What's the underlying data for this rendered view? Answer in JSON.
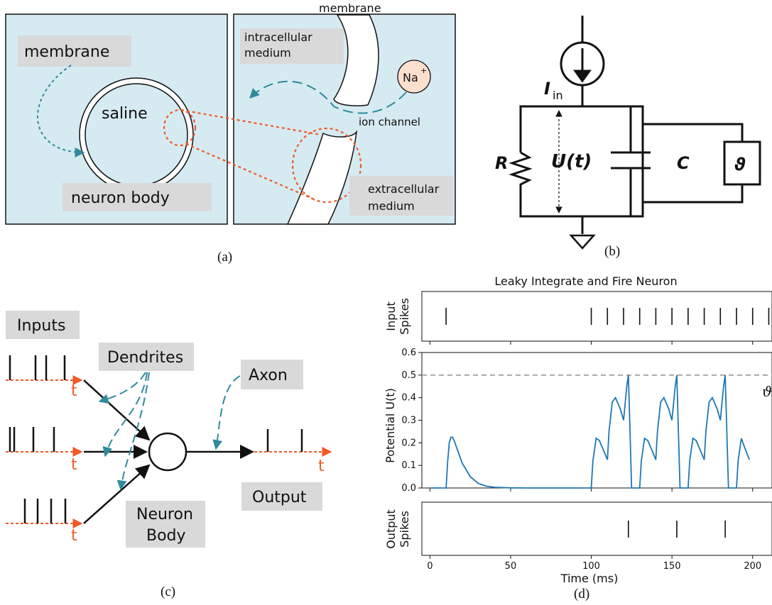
{
  "panel_a": {
    "caption": "(a)",
    "membrane": "membrane",
    "saline": "saline",
    "neuron_body": "neuron body",
    "membrane_top": "membrane",
    "intracellular_1": "intracellular",
    "intracellular_2": "medium",
    "ion": "Na",
    "ion_charge": "+",
    "ion_channel": "ion channel",
    "extracellular_1": "extracellular",
    "extracellular_2": "medium"
  },
  "panel_b": {
    "caption": "(b)",
    "current": "I",
    "current_sub": "in",
    "resistor": "R",
    "voltage": "U(t)",
    "capacitor": "C",
    "threshold": "ϑ"
  },
  "panel_c": {
    "caption": "(c)",
    "inputs": "Inputs",
    "dendrites": "Dendrites",
    "axon": "Axon",
    "neuron_body_1": "Neuron",
    "neuron_body_2": "Body",
    "output": "Output",
    "t_label": "t"
  },
  "panel_d": {
    "caption": "(d)",
    "title": "Leaky Integrate and Fire Neuron",
    "threshold_symbol": "ϑ"
  },
  "colors": {
    "cell_bg": "#d6eaf1",
    "label_bg": "#d9d9d9",
    "teal": "#2f8a9c",
    "orange": "#f05a28",
    "na_fill": "#fbe0cd",
    "trace": "#1f77b4",
    "threshold_line": "#aaaaaa"
  },
  "chart_data": {
    "type": "line",
    "title": "Leaky Integrate and Fire Neuron",
    "xlabel": "Time (ms)",
    "xlim": [
      -5,
      212
    ],
    "xticks": [
      0,
      50,
      100,
      150,
      200
    ],
    "input_spikes": {
      "ylabel": "Input\nSpikes",
      "times": [
        10,
        100,
        110,
        120,
        130,
        140,
        150,
        160,
        170,
        180,
        190,
        200,
        210
      ]
    },
    "potential": {
      "ylabel": "Potential U(t)",
      "ylim": [
        0,
        0.6
      ],
      "yticks": [
        "0.0",
        "0.1",
        "0.2",
        "0.3",
        "0.4",
        "0.5",
        "0.6"
      ],
      "threshold": 0.5,
      "x": [
        0,
        10,
        11,
        12,
        13,
        14,
        15,
        17,
        20,
        25,
        30,
        35,
        40,
        50,
        60,
        80,
        100,
        101,
        103,
        105,
        108,
        110,
        111,
        113,
        115,
        118,
        120,
        122,
        123,
        124,
        125,
        126,
        128,
        130,
        131,
        133,
        135,
        138,
        140,
        141,
        143,
        145,
        148,
        150,
        152,
        153,
        154,
        155,
        156,
        158,
        160,
        161,
        163,
        165,
        168,
        170,
        171,
        173,
        175,
        178,
        180,
        182,
        183,
        184,
        185,
        186,
        188,
        190,
        191,
        193,
        195,
        198
      ],
      "y": [
        0,
        0,
        0.12,
        0.2,
        0.225,
        0.225,
        0.21,
        0.17,
        0.11,
        0.05,
        0.02,
        0.008,
        0.003,
        0.0005,
        0,
        0,
        0,
        0.12,
        0.22,
        0.21,
        0.16,
        0.125,
        0.25,
        0.38,
        0.4,
        0.35,
        0.3,
        0.45,
        0.5,
        0.25,
        0,
        0,
        0,
        0,
        0.12,
        0.22,
        0.21,
        0.16,
        0.125,
        0.25,
        0.38,
        0.4,
        0.35,
        0.3,
        0.45,
        0.5,
        0.25,
        0,
        0,
        0,
        0,
        0.12,
        0.22,
        0.21,
        0.16,
        0.125,
        0.25,
        0.38,
        0.4,
        0.35,
        0.3,
        0.45,
        0.5,
        0.25,
        0,
        0,
        0,
        0,
        0.12,
        0.22,
        0.18,
        0.125
      ]
    },
    "output_spikes": {
      "ylabel": "Output\nSpikes",
      "times": [
        123,
        153,
        183
      ]
    }
  }
}
